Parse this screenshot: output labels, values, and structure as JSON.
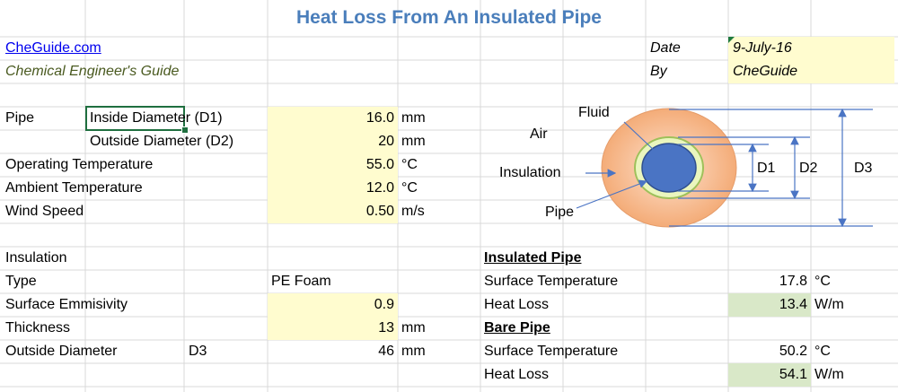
{
  "sheet": {
    "title": "Heat Loss From An Insulated Pipe",
    "link": "CheGuide.com",
    "subtitle": "Chemical Engineer's Guide",
    "date_label": "Date",
    "date_value": "9-July-16",
    "by_label": "By",
    "by_value": "CheGuide"
  },
  "inputs": {
    "pipe_label": "Pipe",
    "inside_diameter_label": "Inside Diameter (D1)",
    "inside_diameter_value": "16.0",
    "inside_diameter_unit": "mm",
    "outside_diameter_label": "Outside Diameter (D2)",
    "outside_diameter_value": "20",
    "outside_diameter_unit": "mm",
    "operating_temp_label": "Operating Temperature",
    "operating_temp_value": "55.0",
    "operating_temp_unit": "°C",
    "ambient_temp_label": "Ambient Temperature",
    "ambient_temp_value": "12.0",
    "ambient_temp_unit": "°C",
    "wind_speed_label": "Wind Speed",
    "wind_speed_value": "0.50",
    "wind_speed_unit": "m/s"
  },
  "insulation": {
    "header": "Insulation",
    "type_label": "Type",
    "type_value": "PE Foam",
    "emissivity_label": "Surface Emmisivity",
    "emissivity_value": "0.9",
    "thickness_label": "Thickness",
    "thickness_value": "13",
    "thickness_unit": "mm",
    "od_label": "Outside Diameter",
    "od_symbol": "D3",
    "od_value": "46",
    "od_unit": "mm"
  },
  "results": {
    "insulated_header": "Insulated Pipe",
    "ins_surface_temp_label": "Surface Temperature",
    "ins_surface_temp_value": "17.8",
    "ins_surface_temp_unit": "°C",
    "ins_heat_loss_label": "Heat Loss",
    "ins_heat_loss_value": "13.4",
    "ins_heat_loss_unit": "W/m",
    "bare_header": "Bare Pipe",
    "bare_surface_temp_label": "Surface Temperature",
    "bare_surface_temp_value": "50.2",
    "bare_surface_temp_unit": "°C",
    "bare_heat_loss_label": "Heat Loss",
    "bare_heat_loss_value": "54.1",
    "bare_heat_loss_unit": "W/m"
  },
  "diagram": {
    "fluid": "Fluid",
    "air": "Air",
    "insulation": "Insulation",
    "pipe": "Pipe",
    "d1": "D1",
    "d2": "D2",
    "d3": "D3"
  },
  "colors": {
    "title": "#4a7ebb",
    "input_fill": "#fffccf",
    "result_fill": "#d9e8c8",
    "fluid": "#4a74c4",
    "insulation": "#f6b98a",
    "pipe_ring": "#e6f3b8"
  }
}
